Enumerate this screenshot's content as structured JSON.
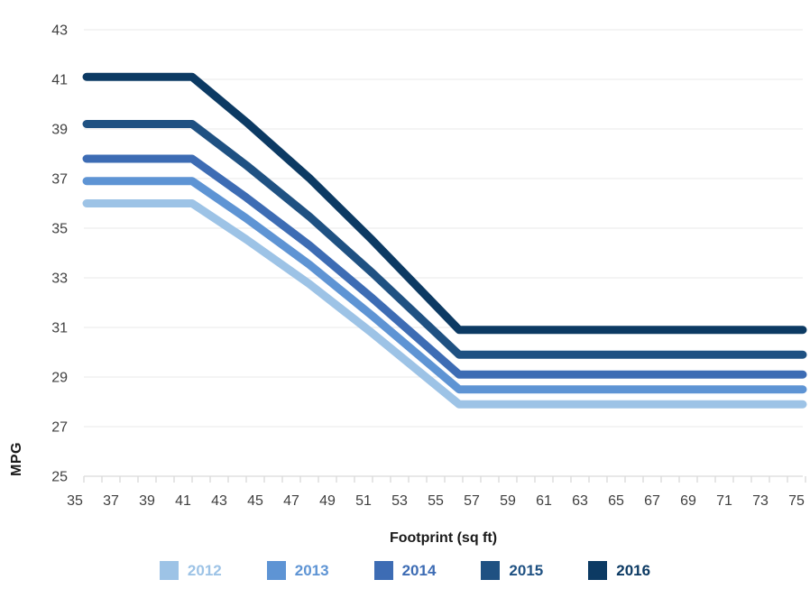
{
  "chart_data": {
    "type": "line",
    "title": "",
    "xlabel": "Footprint (sq ft)",
    "ylabel": "MPG",
    "xlim": [
      35,
      76
    ],
    "ylim": [
      25,
      43
    ],
    "grid": "horizontal",
    "legend_position": "bottom",
    "x_tick_labels": [
      "35",
      "37",
      "39",
      "41",
      "43",
      "45",
      "47",
      "49",
      "51",
      "53",
      "55",
      "57",
      "59",
      "61",
      "63",
      "65",
      "67",
      "69",
      "71",
      "73",
      "75"
    ],
    "y_tick_labels": [
      "25",
      "27",
      "29",
      "31",
      "33",
      "35",
      "37",
      "39",
      "41",
      "43"
    ],
    "line_width": 9,
    "axis_color": "#d9d9d9",
    "grid_color": "#ededed",
    "series": [
      {
        "name": "2012",
        "color": "#9DC3E6",
        "flat_left_mpg": 36.0,
        "flat_right_mpg": 27.9,
        "points": [
          [
            35.65,
            36.0
          ],
          [
            41.5,
            36.0
          ],
          [
            44.5,
            34.55
          ],
          [
            48,
            32.75
          ],
          [
            51.5,
            30.76
          ],
          [
            56.3,
            27.9
          ],
          [
            75.35,
            27.9
          ]
        ]
      },
      {
        "name": "2013",
        "color": "#5E94D4",
        "flat_left_mpg": 36.9,
        "flat_right_mpg": 28.5,
        "points": [
          [
            35.65,
            36.9
          ],
          [
            41.5,
            36.9
          ],
          [
            44.5,
            35.4
          ],
          [
            48,
            33.53
          ],
          [
            51.5,
            31.46
          ],
          [
            56.3,
            28.5
          ],
          [
            75.35,
            28.5
          ]
        ]
      },
      {
        "name": "2014",
        "color": "#3D6CB4",
        "flat_left_mpg": 37.8,
        "flat_right_mpg": 29.1,
        "points": [
          [
            35.65,
            37.8
          ],
          [
            41.5,
            37.8
          ],
          [
            44.5,
            36.24
          ],
          [
            48,
            34.31
          ],
          [
            51.5,
            32.17
          ],
          [
            56.3,
            29.1
          ],
          [
            75.35,
            29.1
          ]
        ]
      },
      {
        "name": "2015",
        "color": "#1F5182",
        "flat_left_mpg": 39.2,
        "flat_right_mpg": 29.9,
        "points": [
          [
            35.65,
            39.2
          ],
          [
            41.5,
            39.2
          ],
          [
            44.5,
            37.54
          ],
          [
            48,
            35.47
          ],
          [
            51.5,
            33.19
          ],
          [
            56.3,
            29.9
          ],
          [
            75.35,
            29.9
          ]
        ]
      },
      {
        "name": "2016",
        "color": "#0C3A63",
        "flat_left_mpg": 41.1,
        "flat_right_mpg": 30.9,
        "points": [
          [
            35.65,
            41.1
          ],
          [
            41.5,
            41.1
          ],
          [
            44.5,
            39.28
          ],
          [
            48,
            37.02
          ],
          [
            51.5,
            34.51
          ],
          [
            56.3,
            30.9
          ],
          [
            75.35,
            30.9
          ]
        ]
      }
    ]
  }
}
